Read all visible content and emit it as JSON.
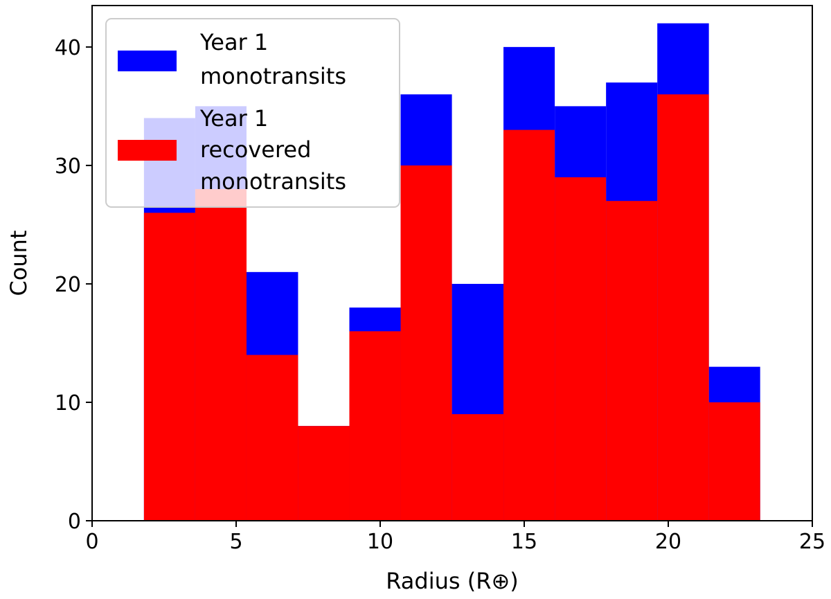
{
  "chart_data": {
    "type": "bar",
    "title": "",
    "xlabel": "Radius (R⊕)",
    "ylabel": "Count",
    "xlim": [
      0,
      25
    ],
    "ylim": [
      0,
      43.5
    ],
    "xticks": [
      0,
      5,
      10,
      15,
      20,
      25
    ],
    "yticks": [
      0,
      10,
      20,
      30,
      40
    ],
    "bin_edges": [
      1.8,
      3.58,
      5.36,
      7.15,
      8.93,
      10.71,
      12.49,
      14.28,
      16.06,
      17.84,
      19.62,
      21.41,
      23.19
    ],
    "series": [
      {
        "name": "Year 1 monotransits",
        "legend_lines": [
          "Year 1",
          "monotransits"
        ],
        "color": "#0000ff",
        "values": [
          34,
          35,
          21,
          8,
          18,
          36,
          20,
          40,
          35,
          37,
          42,
          13
        ]
      },
      {
        "name": "Year 1 recovered monotransits",
        "legend_lines": [
          "Year 1",
          "recovered",
          "monotransits"
        ],
        "color": "#ff0000",
        "values": [
          26,
          28,
          14,
          8,
          16,
          30,
          9,
          33,
          29,
          27,
          36,
          10
        ]
      }
    ],
    "legend_position": "top-left",
    "grid": false
  }
}
